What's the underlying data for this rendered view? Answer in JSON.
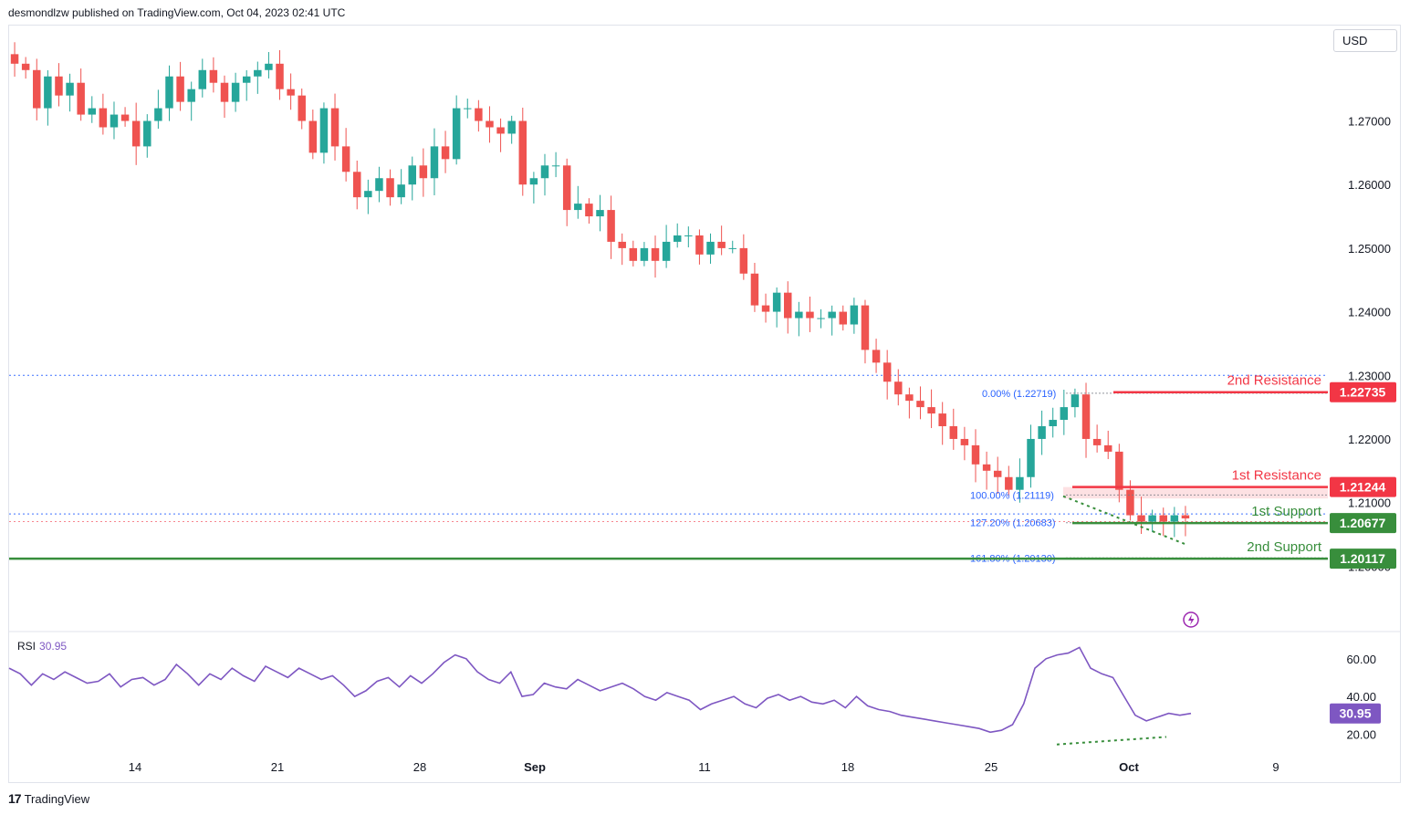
{
  "header": {
    "publisher": "desmondlzw published on TradingView.com, Oct 04, 2023 02:41 UTC"
  },
  "toolbar": {
    "currency": "USD"
  },
  "footer": {
    "brand": "TradingView",
    "logo_glyph": "17"
  },
  "colors": {
    "up": "#26a69a",
    "down": "#ef5350",
    "resistance": "#f23645",
    "support": "#388e3c",
    "fib": "#2962ff",
    "rsi": "#7e57c2"
  },
  "chart_data": {
    "type": "candlestick",
    "symbol_currency": "USD",
    "price_axis": {
      "ylim": [
        1.19,
        1.285
      ],
      "ticks": [
        "1.27000",
        "1.26000",
        "1.25000",
        "1.24000",
        "1.23000",
        "1.22000",
        "1.21000",
        "1.20000"
      ]
    },
    "time_axis": {
      "ticks": [
        "14",
        "21",
        "28",
        "Sep",
        "11",
        "18",
        "25",
        "Oct",
        "9"
      ]
    },
    "close_path": [
      1.279,
      1.278,
      1.272,
      1.277,
      1.274,
      1.276,
      1.271,
      1.272,
      1.269,
      1.271,
      1.27,
      1.266,
      1.27,
      1.272,
      1.277,
      1.273,
      1.275,
      1.278,
      1.276,
      1.273,
      1.276,
      1.277,
      1.278,
      1.279,
      1.275,
      1.274,
      1.27,
      1.265,
      1.272,
      1.266,
      1.262,
      1.258,
      1.259,
      1.261,
      1.258,
      1.26,
      1.263,
      1.261,
      1.266,
      1.264,
      1.272,
      1.272,
      1.27,
      1.269,
      1.268,
      1.27,
      1.26,
      1.261,
      1.263,
      1.263,
      1.256,
      1.257,
      1.255,
      1.256,
      1.251,
      1.25,
      1.248,
      1.25,
      1.248,
      1.251,
      1.252,
      1.252,
      1.249,
      1.251,
      1.25,
      1.25,
      1.246,
      1.241,
      1.24,
      1.243,
      1.239,
      1.24,
      1.239,
      1.239,
      1.24,
      1.238,
      1.241,
      1.234,
      1.232,
      1.229,
      1.227,
      1.226,
      1.225,
      1.224,
      1.222,
      1.22,
      1.219,
      1.216,
      1.215,
      1.214,
      1.212,
      1.214,
      1.22,
      1.222,
      1.223,
      1.225,
      1.227,
      1.22,
      1.219,
      1.218,
      1.212,
      1.208,
      1.207,
      1.208,
      1.207,
      1.208,
      1.2075
    ],
    "levels": [
      {
        "name": "2nd Resistance",
        "value": "1.22735",
        "kind": "resistance"
      },
      {
        "name": "1st Resistance",
        "value": "1.21244",
        "kind": "resistance"
      },
      {
        "name": "1st Support",
        "value": "1.20677",
        "kind": "support"
      },
      {
        "name": "2nd Support",
        "value": "1.20117",
        "kind": "support"
      }
    ],
    "fibonacci": [
      {
        "label": "0.00% (1.22719)",
        "value": 1.22719
      },
      {
        "label": "100.00% (1.21119)",
        "value": 1.21119
      },
      {
        "label": "127.20% (1.20683)",
        "value": 1.20683
      },
      {
        "label": "161.80% (1.20130)",
        "value": 1.2013
      }
    ],
    "horizontal_dotted": [
      1.23,
      1.2082,
      1.207
    ],
    "rsi": {
      "title": "RSI",
      "current": "30.95",
      "ylim": [
        10,
        72
      ],
      "ticks": [
        "60.00",
        "40.00",
        "20.00"
      ],
      "values": [
        55,
        52,
        46,
        52,
        49,
        53,
        50,
        47,
        48,
        52,
        45,
        49,
        50,
        46,
        49,
        57,
        52,
        46,
        52,
        49,
        55,
        51,
        48,
        56,
        53,
        50,
        55,
        52,
        49,
        51,
        46,
        40,
        43,
        48,
        50,
        45,
        51,
        47,
        52,
        58,
        62,
        60,
        53,
        49,
        47,
        53,
        40,
        41,
        47,
        45,
        44,
        49,
        46,
        43,
        45,
        47,
        44,
        40,
        38,
        42,
        40,
        38,
        33,
        36,
        38,
        40,
        36,
        34,
        39,
        41,
        38,
        40,
        37,
        36,
        38,
        34,
        40,
        35,
        33,
        32,
        30,
        29,
        28,
        27,
        26,
        25,
        24,
        23,
        21,
        22,
        25,
        36,
        55,
        60,
        62,
        63,
        66,
        55,
        52,
        50,
        40,
        30,
        27,
        29,
        31,
        30,
        30.95
      ]
    }
  }
}
